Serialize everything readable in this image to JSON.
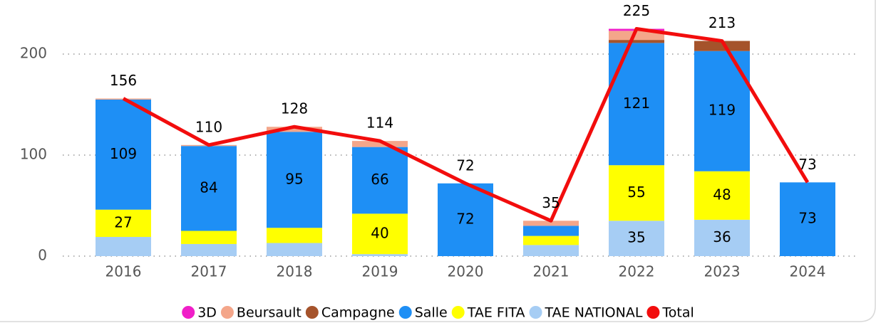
{
  "chart_data": {
    "type": "stacked-bar-line",
    "categories": [
      "2016",
      "2017",
      "2018",
      "2019",
      "2020",
      "2021",
      "2022",
      "2023",
      "2024"
    ],
    "series": [
      {
        "name": "TAE NATIONAL",
        "type": "bar",
        "color": "#a6cdf4",
        "values": [
          19,
          12,
          13,
          2,
          0,
          11,
          35,
          36,
          0
        ],
        "value_labels": [
          null,
          null,
          null,
          null,
          null,
          null,
          "35",
          "36",
          null
        ]
      },
      {
        "name": "TAE FITA",
        "type": "bar",
        "color": "#ffff00",
        "values": [
          27,
          13,
          15,
          40,
          0,
          9,
          55,
          48,
          0
        ],
        "value_labels": [
          "27",
          null,
          null,
          "40",
          null,
          null,
          "55",
          "48",
          null
        ]
      },
      {
        "name": "Salle",
        "type": "bar",
        "color": "#1e8ff5",
        "values": [
          109,
          84,
          95,
          66,
          72,
          10,
          121,
          119,
          73
        ],
        "value_labels": [
          "109",
          "84",
          "95",
          "66",
          "72",
          null,
          "121",
          "119",
          "73"
        ]
      },
      {
        "name": "Campagne",
        "type": "bar",
        "color": "#a5532b",
        "values": [
          0,
          0,
          0,
          0,
          0,
          0,
          3,
          10,
          0
        ],
        "value_labels": [
          null,
          null,
          null,
          null,
          null,
          null,
          null,
          null,
          null
        ]
      },
      {
        "name": "Beursault",
        "type": "bar",
        "color": "#f4a68a",
        "values": [
          1,
          1,
          5,
          6,
          0,
          5,
          9,
          0,
          0
        ],
        "value_labels": [
          null,
          null,
          null,
          null,
          null,
          null,
          null,
          null,
          null
        ]
      },
      {
        "name": "3D",
        "type": "bar",
        "color": "#f01fc8",
        "values": [
          0,
          0,
          0,
          0,
          0,
          0,
          2,
          0,
          0
        ],
        "value_labels": [
          null,
          null,
          null,
          null,
          null,
          null,
          null,
          null,
          null
        ]
      },
      {
        "name": "Total",
        "type": "line",
        "color": "#f20d0d",
        "values": [
          156,
          110,
          128,
          114,
          72,
          35,
          225,
          213,
          73
        ],
        "value_labels": [
          "156",
          "110",
          "128",
          "114",
          "72",
          "35",
          "225",
          "213",
          "73"
        ]
      }
    ],
    "legend_order": [
      5,
      4,
      3,
      2,
      1,
      0,
      6
    ],
    "ylim": [
      0,
      250
    ],
    "yticks": [
      0,
      100,
      200
    ],
    "grid": true,
    "legend": "bottom"
  }
}
